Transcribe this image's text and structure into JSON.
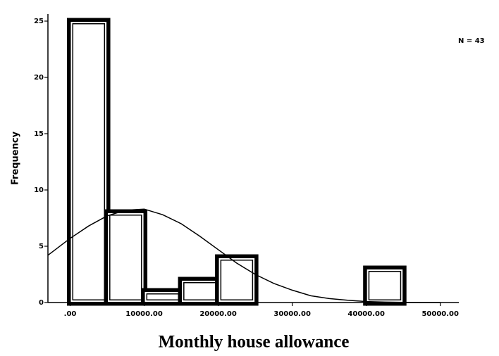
{
  "chart_data": {
    "type": "histogram",
    "x_label": "Monthly house allowance",
    "y_label": "Frequency",
    "annotation": "N = 43",
    "bins": [
      0,
      5000,
      10000,
      15000,
      20000,
      25000,
      30000,
      35000,
      40000,
      45000
    ],
    "counts": [
      25,
      8,
      1,
      2,
      4,
      0,
      0,
      0,
      3
    ],
    "color": "#000000",
    "curve": {
      "x": [
        -3000,
        0,
        2500,
        5000,
        7500,
        10000,
        12500,
        15000,
        17500,
        20000,
        22500,
        25000,
        27500,
        30000,
        32500,
        35000,
        37500,
        40000,
        42500,
        45000,
        47500,
        50000
      ],
      "values": [
        4.2,
        5.7,
        6.8,
        7.7,
        8.2,
        8.3,
        7.8,
        7.0,
        5.9,
        4.7,
        3.5,
        2.5,
        1.7,
        1.1,
        0.6,
        0.35,
        0.2,
        0.09,
        0.04,
        0.02,
        0,
        0
      ]
    },
    "xlim": [
      -3000,
      52500
    ],
    "ylim": [
      0,
      26
    ],
    "xticks": [
      {
        "value": 0,
        "label": ".00"
      },
      {
        "value": 10000,
        "label": "10000.00"
      },
      {
        "value": 20000,
        "label": "20000.00"
      },
      {
        "value": 30000,
        "label": "30000.00"
      },
      {
        "value": 40000,
        "label": "40000.00"
      },
      {
        "value": 50000,
        "label": "50000.00"
      }
    ],
    "yticks": [
      0,
      5,
      10,
      15,
      20,
      25
    ]
  }
}
